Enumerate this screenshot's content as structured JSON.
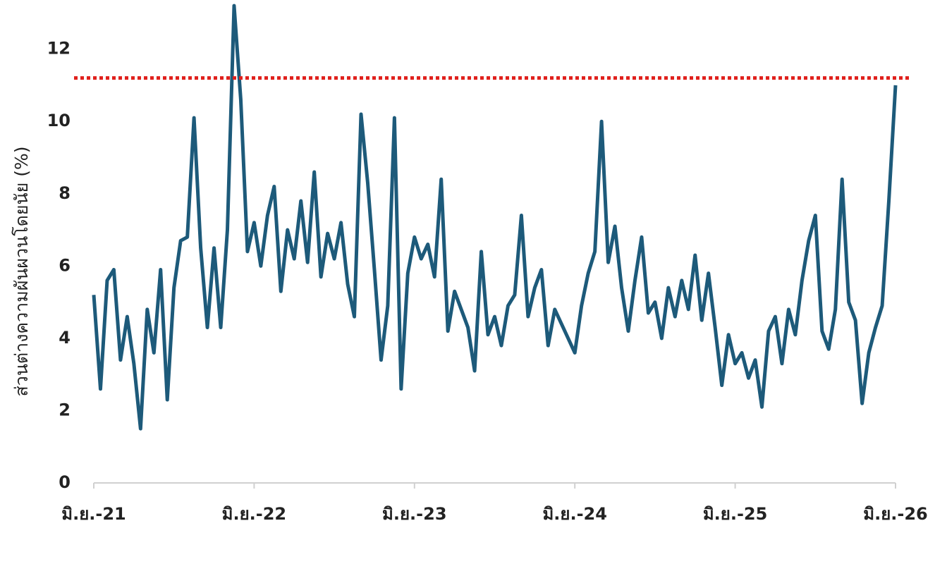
{
  "chart_data": {
    "type": "line",
    "y_label": "ส่วนต่างความผันผวนโดยนัย (%)",
    "x": [
      0,
      0.5,
      1,
      1.5,
      2,
      2.5,
      3,
      3.5,
      4,
      4.5,
      5,
      5.5,
      6,
      6.5,
      7,
      7.5,
      8,
      8.5,
      9,
      9.5,
      10,
      10.5,
      11,
      11.5,
      12,
      12.5,
      13,
      13.5,
      14,
      14.5,
      15,
      15.5,
      16,
      16.5,
      17,
      17.5,
      18,
      18.5,
      19,
      19.5,
      20,
      20.5,
      21,
      21.5,
      22,
      22.5,
      23,
      23.5,
      24,
      24.5,
      25,
      25.5,
      26,
      26.5,
      27,
      27.5,
      28,
      28.5,
      29,
      29.5,
      30,
      30.5,
      31,
      31.5,
      32,
      32.5,
      33,
      33.5,
      34,
      34.5,
      35,
      35.5,
      36,
      36.5,
      37,
      37.5,
      38,
      38.5,
      39,
      39.5,
      40,
      40.5,
      41,
      41.5,
      42,
      42.5,
      43,
      43.5,
      44,
      44.5,
      45,
      45.5,
      46,
      46.5,
      47,
      47.5,
      48,
      48.5,
      49,
      49.5,
      50,
      50.5,
      51,
      51.5,
      52,
      52.5,
      53,
      53.5,
      54,
      54.5,
      55,
      55.5,
      56,
      56.5,
      57,
      57.5,
      58,
      58.5,
      59,
      59.5,
      60
    ],
    "series": [
      {
        "color": "#1d5a7a",
        "values": [
          5.2,
          2.6,
          5.6,
          5.9,
          3.4,
          4.6,
          3.3,
          1.5,
          4.8,
          3.6,
          5.9,
          2.3,
          5.4,
          6.7,
          6.8,
          10.1,
          6.5,
          4.3,
          6.5,
          4.3,
          7.0,
          13.2,
          10.6,
          6.4,
          7.2,
          6.0,
          7.4,
          8.2,
          5.3,
          7.0,
          6.2,
          7.8,
          6.1,
          8.6,
          5.7,
          6.9,
          6.2,
          7.2,
          5.5,
          4.6,
          10.2,
          8.3,
          5.9,
          3.4,
          4.9,
          10.1,
          2.6,
          5.8,
          6.8,
          6.2,
          6.6,
          5.7,
          8.4,
          4.2,
          5.3,
          4.8,
          4.3,
          3.1,
          6.4,
          4.1,
          4.6,
          3.8,
          4.9,
          5.2,
          7.4,
          4.6,
          5.4,
          5.9,
          3.8,
          4.8,
          4.4,
          4.0,
          3.6,
          4.9,
          5.8,
          6.4,
          10.0,
          6.1,
          7.1,
          5.4,
          4.2,
          5.6,
          6.8,
          4.7,
          5.0,
          4.0,
          5.4,
          4.6,
          5.6,
          4.8,
          6.3,
          4.5,
          5.8,
          4.3,
          2.7,
          4.1,
          3.3,
          3.6,
          2.9,
          3.4,
          2.1,
          4.2,
          4.6,
          3.3,
          4.8,
          4.1,
          5.6,
          6.7,
          7.4,
          4.2,
          3.7,
          4.8,
          8.4,
          5.0,
          4.5,
          2.2,
          3.6,
          4.3,
          4.9,
          7.8,
          11.0
        ]
      }
    ],
    "threshold": {
      "value": 11.2,
      "color": "#e0201c"
    },
    "xlim": [
      0,
      60
    ],
    "xticks": [
      {
        "value": 0,
        "label": "มิ.ย.-21"
      },
      {
        "value": 12,
        "label": "มิ.ย.-22"
      },
      {
        "value": 24,
        "label": "มิ.ย.-23"
      },
      {
        "value": 36,
        "label": "มิ.ย.-24"
      },
      {
        "value": 48,
        "label": "มิ.ย.-25"
      },
      {
        "value": 60,
        "label": "มิ.ย.-26"
      }
    ],
    "ylim": [
      0,
      13.3
    ],
    "yticks": [
      0,
      2,
      4,
      6,
      8,
      10,
      12
    ],
    "grid": false
  }
}
